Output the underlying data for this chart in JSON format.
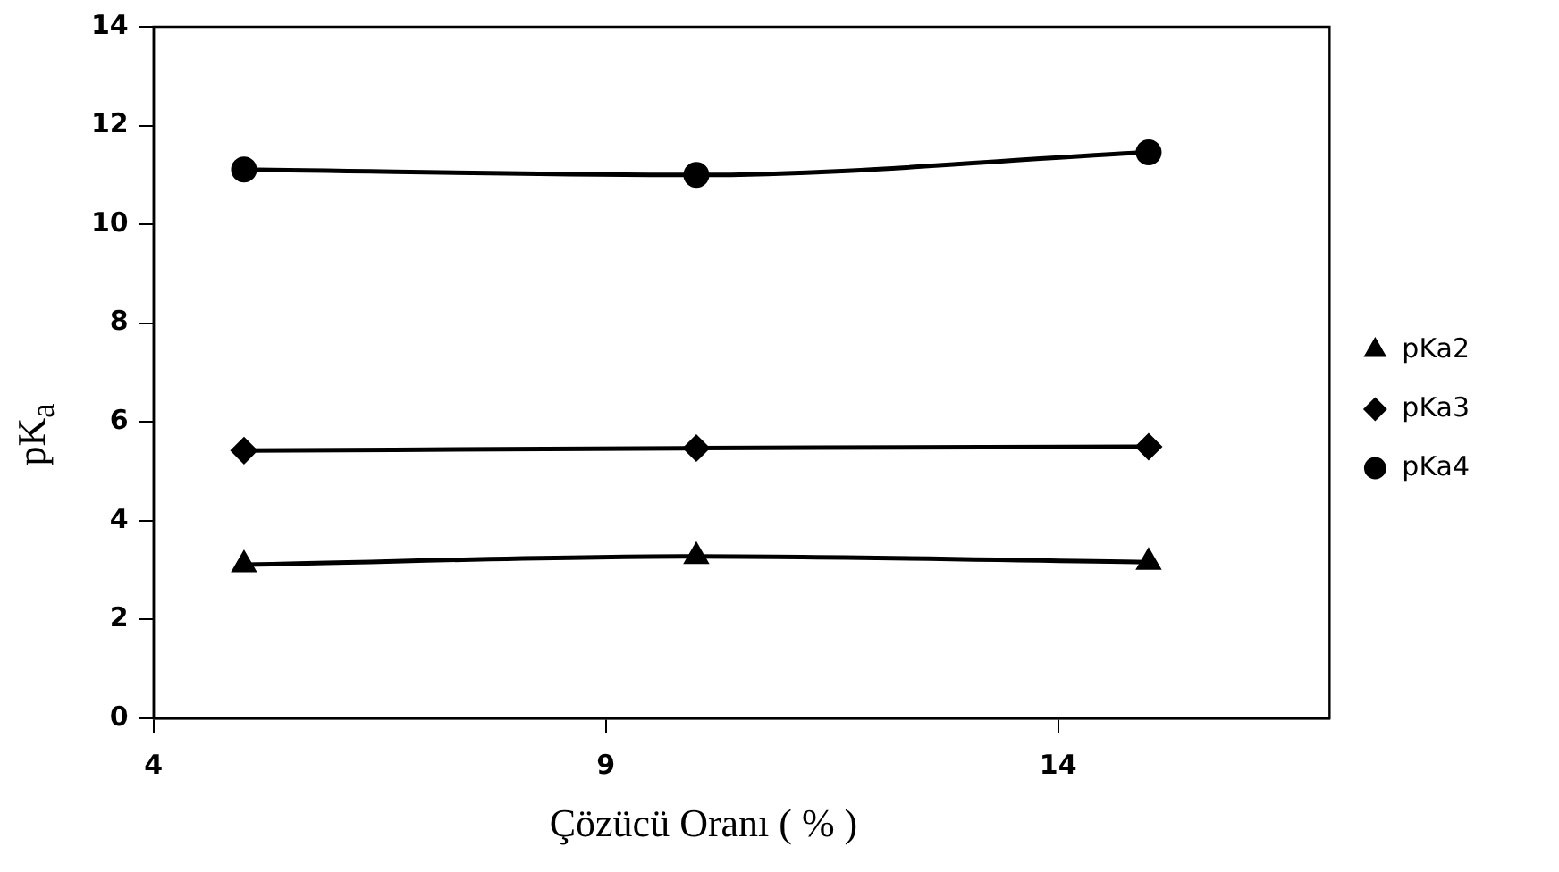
{
  "chart_data": {
    "type": "line",
    "xlabel": "Çözücü Oranı ( % )",
    "ylabel": "pK$_{a}$",
    "x": [
      5,
      10,
      15
    ],
    "series": [
      {
        "name": "pKa2",
        "color": "#000000",
        "marker": "triangle",
        "values": [
          3.11,
          3.28,
          3.16
        ]
      },
      {
        "name": "pKa3",
        "color": "#000000",
        "marker": "diamond",
        "values": [
          5.42,
          5.47,
          5.5
        ]
      },
      {
        "name": "pKa4",
        "color": "#000000",
        "marker": "circle",
        "values": [
          11.11,
          11.0,
          11.46
        ]
      }
    ],
    "xlim": [
      4,
      17
    ],
    "xticks": [
      4,
      9,
      14
    ],
    "ylim": [
      0,
      14
    ],
    "yticks": [
      0,
      2,
      4,
      6,
      8,
      10,
      12,
      14
    ],
    "grid": false,
    "legend": "right",
    "line_style": "solid"
  }
}
